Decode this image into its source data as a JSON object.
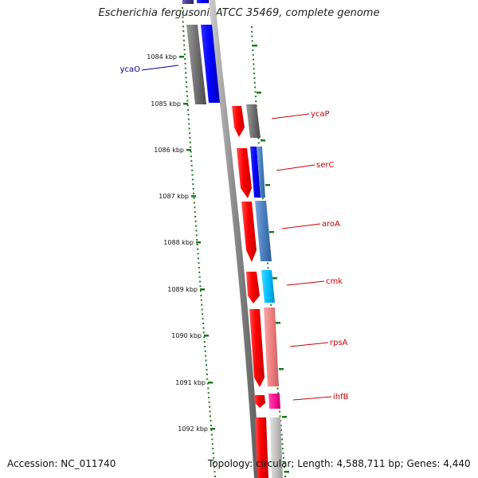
{
  "title": "Escherichia fergusonii ATCC 35469, complete genome",
  "accession": "Accession: NC_011740",
  "topology": "Topology: circular; Length: 4,588,711 bp; Genes: 4,440",
  "colors": {
    "backbone": "#8a8a8a",
    "tick": "#1a7a1a",
    "forward_label": "#00008b",
    "reverse_label": "#cc0000"
  },
  "kbp_ticks": [
    "1084 kbp",
    "1085 kbp",
    "1086 kbp",
    "1087 kbp",
    "1088 kbp",
    "1089 kbp",
    "1090 kbp",
    "1091 kbp",
    "1092 kbp"
  ],
  "gene_labels": [
    {
      "name": "ycaO",
      "color": "#00008b"
    },
    {
      "name": "ycaP",
      "color": "#cc0000"
    },
    {
      "name": "serC",
      "color": "#cc0000"
    },
    {
      "name": "aroA",
      "color": "#cc0000"
    },
    {
      "name": "cmk",
      "color": "#cc0000"
    },
    {
      "name": "rpsA",
      "color": "#cc0000"
    },
    {
      "name": "ihfB",
      "color": "#cc0000"
    }
  ]
}
